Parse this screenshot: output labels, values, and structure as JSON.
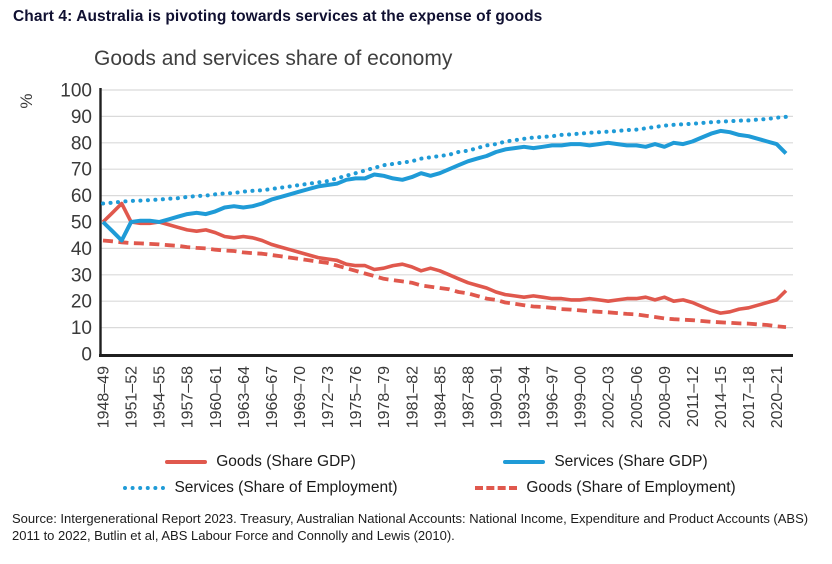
{
  "header": {
    "title": "Chart 4: Australia is pivoting towards services at the expense of goods"
  },
  "chart_data": {
    "type": "line",
    "title": "Goods and services share of economy",
    "ylabel": "%",
    "ylim": [
      0,
      100
    ],
    "y_ticks": [
      0,
      10,
      20,
      30,
      40,
      50,
      60,
      70,
      80,
      90,
      100
    ],
    "grid": true,
    "legend_position": "bottom",
    "n_points": 74,
    "x_tick_step": 3,
    "x_tick_labels": [
      "1948–49",
      "1951–52",
      "1954–55",
      "1957–58",
      "1960–61",
      "1963–64",
      "1966–67",
      "1969–70",
      "1972–73",
      "1975–76",
      "1978–79",
      "1981–82",
      "1984–85",
      "1987–88",
      "1990–91",
      "1993–94",
      "1996–97",
      "1999–00",
      "2002–03",
      "2005–06",
      "2008–09",
      "2011–12",
      "2014–15",
      "2017–18",
      "2020–21"
    ],
    "x_range_note": "annual financial years 1948–49 to 2021–22",
    "series": [
      {
        "name": "Goods (Share GDP)",
        "style": "solid",
        "color": "#E0584D",
        "values": [
          50,
          53.5,
          57,
          50,
          49.5,
          49.5,
          50,
          49,
          48,
          47,
          46.5,
          47,
          46,
          44.5,
          44,
          44.5,
          44,
          43,
          41.5,
          40.5,
          39.5,
          38.5,
          37.5,
          36.5,
          36,
          35.5,
          34,
          33.5,
          33.5,
          32,
          32.5,
          33.5,
          34,
          33,
          31.5,
          32.5,
          31.5,
          30,
          28.5,
          27,
          26,
          25,
          23.5,
          22.5,
          22,
          21.5,
          22,
          21.5,
          21,
          21,
          20.5,
          20.5,
          21,
          20.5,
          20,
          20.5,
          21,
          21,
          21.5,
          20.5,
          21.5,
          20,
          20.5,
          19.5,
          18,
          16.5,
          15.5,
          16,
          17,
          17.5,
          18.5,
          19.5,
          20.5,
          24
        ]
      },
      {
        "name": "Services (Share GDP)",
        "style": "solid",
        "color": "#1F9BD7",
        "values": [
          50,
          46.5,
          43,
          50,
          50.5,
          50.5,
          50,
          51,
          52,
          53,
          53.5,
          53,
          54,
          55.5,
          56,
          55.5,
          56,
          57,
          58.5,
          59.5,
          60.5,
          61.5,
          62.5,
          63.5,
          64,
          64.5,
          66,
          66.5,
          66.5,
          68,
          67.5,
          66.5,
          66,
          67,
          68.5,
          67.5,
          68.5,
          70,
          71.5,
          73,
          74,
          75,
          76.5,
          77.5,
          78,
          78.5,
          78,
          78.5,
          79,
          79,
          79.5,
          79.5,
          79,
          79.5,
          80,
          79.5,
          79,
          79,
          78.5,
          79.5,
          78.5,
          80,
          79.5,
          80.5,
          82,
          83.5,
          84.5,
          84,
          83,
          82.5,
          81.5,
          80.5,
          79.5,
          76
        ]
      },
      {
        "name": "Services (Share of Employment)",
        "style": "dotted",
        "color": "#1F9BD7",
        "values": [
          57,
          57.3,
          57.7,
          58,
          58.1,
          58.3,
          58.5,
          58.8,
          59,
          59.5,
          59.8,
          60,
          60.5,
          60.8,
          61,
          61.5,
          61.8,
          62,
          62.5,
          63,
          63.5,
          64,
          64.5,
          65,
          65.5,
          66.5,
          67.5,
          68.5,
          69.5,
          70.5,
          71.5,
          72,
          72.5,
          73,
          74,
          74.5,
          75,
          75.5,
          76.5,
          77,
          78,
          79,
          79.5,
          80.5,
          81,
          81.5,
          82,
          82.2,
          82.5,
          83,
          83.2,
          83.5,
          83.8,
          84,
          84.2,
          84.5,
          84.8,
          85,
          85.5,
          86,
          86.5,
          86.8,
          87,
          87.2,
          87.5,
          87.8,
          88,
          88.2,
          88.4,
          88.5,
          88.8,
          89,
          89.5,
          89.8
        ]
      },
      {
        "name": "Goods (Share of Employment)",
        "style": "dashed",
        "color": "#E0584D",
        "values": [
          43,
          42.7,
          42.3,
          42,
          41.9,
          41.7,
          41.5,
          41.2,
          41,
          40.5,
          40.2,
          40,
          39.5,
          39.2,
          39,
          38.5,
          38.2,
          38,
          37.5,
          37,
          36.5,
          36,
          35.5,
          35,
          34.5,
          33.5,
          32.5,
          31.5,
          30.5,
          29.5,
          28.5,
          28,
          27.5,
          27,
          26,
          25.5,
          25,
          24.5,
          23.5,
          23,
          22,
          21,
          20.5,
          19.5,
          19,
          18.5,
          18,
          17.8,
          17.5,
          17,
          16.8,
          16.5,
          16.2,
          16,
          15.8,
          15.5,
          15.2,
          15,
          14.5,
          14,
          13.5,
          13.2,
          13,
          12.8,
          12.5,
          12.2,
          12,
          11.8,
          11.6,
          11.5,
          11.2,
          11,
          10.5,
          10.2
        ]
      }
    ],
    "colors": {
      "goods": "#E0584D",
      "services": "#1F9BD7",
      "gridline": "#DADADA",
      "axis": "#1f1f1f",
      "tick_text": "#3a3a3a"
    }
  },
  "legend": {
    "row1_col1": "Goods (Share GDP)",
    "row1_col2": "Services (Share GDP)",
    "row2_col1": "Services (Share of Employment)",
    "row2_col2": "Goods (Share of Employment)"
  },
  "source": {
    "text": "Source: Intergenerational Report 2023. Treasury, Australian National Accounts: National Income, Expenditure and Product Accounts (ABS) 2011 to 2022, Butlin et al, ABS Labour Force and Connolly and Lewis (2010)."
  }
}
